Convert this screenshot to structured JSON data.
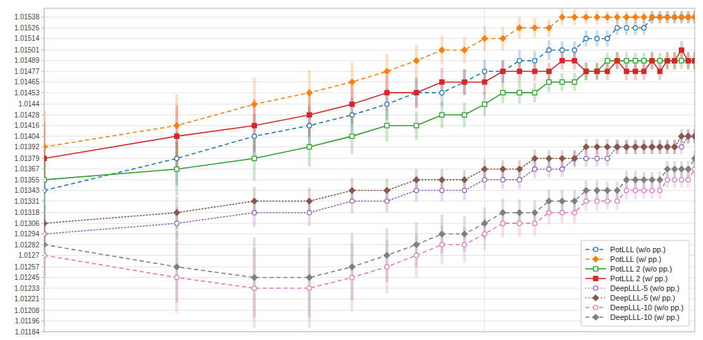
{
  "chart_data": {
    "type": "line",
    "log": "x",
    "grid": true,
    "legend": "lower right",
    "tick_labels": "y",
    "x": [
      1,
      2,
      3,
      4,
      5,
      6,
      7,
      8,
      9,
      10,
      11,
      12,
      13,
      14,
      15,
      16,
      17,
      18,
      19,
      20,
      21,
      22,
      23,
      24,
      25,
      26,
      27,
      28,
      29,
      30
    ],
    "xlim": [
      1,
      30
    ],
    "xticks": [
      1,
      10
    ],
    "ylim": [
      1.01184,
      1.01548
    ],
    "yticks": [
      1.01184,
      1.01196,
      1.01208,
      1.01221,
      1.01233,
      1.01245,
      1.01257,
      1.0127,
      1.01282,
      1.01294,
      1.01306,
      1.01318,
      1.01331,
      1.01343,
      1.01355,
      1.01367,
      1.01379,
      1.01392,
      1.01404,
      1.01416,
      1.01428,
      1.0144,
      1.01453,
      1.01465,
      1.01477,
      1.01489,
      1.01501,
      1.01514,
      1.01526,
      1.01538
    ],
    "series": [
      {
        "name": "PotLLL (w/o pp.)",
        "color": "#1f77b4",
        "marker": "circle-open",
        "line_style": "dashed",
        "values": [
          1.01343,
          1.01379,
          1.01404,
          1.01416,
          1.01428,
          1.0144,
          1.01453,
          1.01453,
          1.01465,
          1.01477,
          1.01477,
          1.01489,
          1.01489,
          1.01501,
          1.01501,
          1.01501,
          1.01514,
          1.01514,
          1.01514,
          1.01526,
          1.01526,
          1.01526,
          1.01526,
          1.01538,
          1.01538,
          1.01538,
          1.01538,
          1.01538,
          1.01538,
          1.01538
        ],
        "errors": [
          0.00035,
          0.0003,
          0.00025,
          0.00022,
          0.0002,
          0.00018,
          0.00016,
          0.00015,
          0.00014,
          0.00013,
          0.00012,
          0.00012,
          0.00011,
          0.00011,
          0.0001,
          0.0001,
          9e-05,
          9e-05,
          9e-05,
          8e-05,
          8e-05,
          8e-05,
          8e-05,
          7e-05,
          7e-05,
          7e-05,
          7e-05,
          7e-05,
          7e-05,
          7e-05
        ]
      },
      {
        "name": "PotLLL (w/ pp.)",
        "color": "#ff7f0e",
        "marker": "diamond",
        "line_style": "dashed",
        "values": [
          1.01392,
          1.01416,
          1.0144,
          1.01453,
          1.01465,
          1.01477,
          1.01489,
          1.01501,
          1.01501,
          1.01514,
          1.01514,
          1.01526,
          1.01526,
          1.01526,
          1.01538,
          1.01538,
          1.01538,
          1.01538,
          1.01538,
          1.01538,
          1.01538,
          1.01538,
          1.01538,
          1.01538,
          1.01538,
          1.01538,
          1.01538,
          1.01538,
          1.01538,
          1.01538
        ],
        "errors": [
          0.0004,
          0.00035,
          0.0003,
          0.00025,
          0.00022,
          0.0002,
          0.00018,
          0.00016,
          0.00015,
          0.00014,
          0.00013,
          0.00012,
          0.00011,
          0.0001,
          9e-05,
          9e-05,
          8e-05,
          8e-05,
          7e-05,
          7e-05,
          7e-05,
          7e-05,
          7e-05,
          7e-05,
          7e-05,
          7e-05,
          7e-05,
          7e-05,
          7e-05,
          7e-05
        ]
      },
      {
        "name": "PotLLL 2 (w/o pp.)",
        "color": "#2ca02c",
        "marker": "square-open",
        "line_style": "solid",
        "values": [
          1.01355,
          1.01367,
          1.01379,
          1.01392,
          1.01404,
          1.01416,
          1.01416,
          1.01428,
          1.01428,
          1.0144,
          1.01453,
          1.01453,
          1.01453,
          1.01465,
          1.01465,
          1.01465,
          1.01477,
          1.01477,
          1.01489,
          1.01489,
          1.01489,
          1.01489,
          1.01489,
          1.01489,
          1.01489,
          1.01489,
          1.01489,
          1.01489,
          1.01489,
          1.01489
        ],
        "errors": [
          0.00035,
          0.0003,
          0.00025,
          0.00022,
          0.0002,
          0.00018,
          0.00016,
          0.00015,
          0.00014,
          0.00013,
          0.00012,
          0.00012,
          0.00011,
          0.00011,
          0.0001,
          0.0001,
          0.0001,
          9e-05,
          9e-05,
          9e-05,
          9e-05,
          9e-05,
          9e-05,
          9e-05,
          9e-05,
          9e-05,
          9e-05,
          9e-05,
          9e-05,
          9e-05
        ]
      },
      {
        "name": "PotLLL 2 (w/ pp.)",
        "color": "#d62728",
        "marker": "square",
        "line_style": "solid",
        "values": [
          1.01379,
          1.01404,
          1.01416,
          1.01428,
          1.0144,
          1.01453,
          1.01453,
          1.01465,
          1.01465,
          1.01465,
          1.01477,
          1.01477,
          1.01477,
          1.01477,
          1.01489,
          1.01489,
          1.01477,
          1.01477,
          1.01477,
          1.01489,
          1.01477,
          1.01477,
          1.01477,
          1.01489,
          1.01477,
          1.01489,
          1.01489,
          1.01501,
          1.01489,
          1.01489
        ],
        "errors": [
          0.0004,
          0.00035,
          0.0003,
          0.00025,
          0.00022,
          0.0002,
          0.00018,
          0.00016,
          0.00015,
          0.00014,
          0.00013,
          0.00012,
          0.00011,
          0.0001,
          0.0001,
          0.0001,
          0.0001,
          0.0001,
          0.0001,
          0.0001,
          0.0001,
          0.0001,
          0.0001,
          0.0001,
          0.0001,
          0.0001,
          0.0001,
          0.0001,
          0.0001,
          0.0001
        ]
      },
      {
        "name": "DeepLLL-5 (w/o pp.)",
        "color": "#9467bd",
        "marker": "circle-open",
        "line_style": "dotted",
        "values": [
          1.01294,
          1.01306,
          1.01318,
          1.01318,
          1.01331,
          1.01331,
          1.01343,
          1.01343,
          1.01343,
          1.01355,
          1.01355,
          1.01355,
          1.01367,
          1.01367,
          1.01367,
          1.01379,
          1.01379,
          1.01379,
          1.01379,
          1.01392,
          1.01392,
          1.01392,
          1.01392,
          1.01392,
          1.01392,
          1.01392,
          1.01392,
          1.01392,
          1.01404,
          1.01404
        ],
        "errors": [
          0.0002,
          0.00018,
          0.00016,
          0.00015,
          0.00014,
          0.00013,
          0.00012,
          0.00012,
          0.00011,
          0.00011,
          0.0001,
          0.0001,
          0.0001,
          9e-05,
          9e-05,
          9e-05,
          9e-05,
          9e-05,
          9e-05,
          8e-05,
          8e-05,
          8e-05,
          8e-05,
          8e-05,
          8e-05,
          8e-05,
          8e-05,
          8e-05,
          8e-05,
          8e-05
        ]
      },
      {
        "name": "DeepLLL-5 (w/ pp.)",
        "color": "#8c564b",
        "marker": "diamond",
        "line_style": "dotted",
        "values": [
          1.01306,
          1.01318,
          1.01331,
          1.01331,
          1.01343,
          1.01343,
          1.01355,
          1.01355,
          1.01355,
          1.01367,
          1.01367,
          1.01367,
          1.01379,
          1.01379,
          1.01379,
          1.01379,
          1.01392,
          1.01392,
          1.01392,
          1.01392,
          1.01392,
          1.01392,
          1.01392,
          1.01392,
          1.01392,
          1.01392,
          1.01392,
          1.01404,
          1.01404,
          1.01404
        ],
        "errors": [
          0.0002,
          0.00018,
          0.00016,
          0.00015,
          0.00014,
          0.00013,
          0.00012,
          0.00012,
          0.00011,
          0.00011,
          0.0001,
          0.0001,
          0.0001,
          9e-05,
          9e-05,
          9e-05,
          9e-05,
          9e-05,
          9e-05,
          8e-05,
          8e-05,
          8e-05,
          8e-05,
          8e-05,
          8e-05,
          8e-05,
          8e-05,
          8e-05,
          8e-05,
          8e-05
        ]
      },
      {
        "name": "DeepLLL-10 (w/o pp.)",
        "color": "#e377c2",
        "marker": "circle-open",
        "line_style": "dashed",
        "values": [
          1.0127,
          1.01245,
          1.01233,
          1.01233,
          1.01245,
          1.01257,
          1.0127,
          1.01282,
          1.01282,
          1.01294,
          1.01306,
          1.01306,
          1.01306,
          1.01318,
          1.01318,
          1.01318,
          1.01331,
          1.01331,
          1.01331,
          1.01331,
          1.01343,
          1.01343,
          1.01343,
          1.01343,
          1.01343,
          1.01355,
          1.01355,
          1.01355,
          1.01355,
          1.01367
        ],
        "errors": [
          0.00035,
          0.0004,
          0.00045,
          0.00045,
          0.00038,
          0.0003,
          0.00025,
          0.00022,
          0.0002,
          0.00018,
          0.00016,
          0.00015,
          0.00014,
          0.00013,
          0.00012,
          0.00012,
          0.00011,
          0.00011,
          0.0001,
          0.0001,
          0.0001,
          0.0001,
          9e-05,
          9e-05,
          9e-05,
          9e-05,
          9e-05,
          9e-05,
          9e-05,
          9e-05
        ]
      },
      {
        "name": "DeepLLL-10 (w/ pp.)",
        "color": "#7f7f7f",
        "marker": "diamond",
        "line_style": "dashed",
        "values": [
          1.01282,
          1.01257,
          1.01245,
          1.01245,
          1.01257,
          1.0127,
          1.01282,
          1.01294,
          1.01294,
          1.01306,
          1.01318,
          1.01318,
          1.01318,
          1.01331,
          1.01331,
          1.01331,
          1.01343,
          1.01343,
          1.01343,
          1.01343,
          1.01355,
          1.01355,
          1.01355,
          1.01355,
          1.01355,
          1.01367,
          1.01367,
          1.01367,
          1.01367,
          1.01379
        ],
        "errors": [
          0.00035,
          0.0004,
          0.00045,
          0.00045,
          0.00038,
          0.0003,
          0.00025,
          0.00022,
          0.0002,
          0.00018,
          0.00016,
          0.00015,
          0.00014,
          0.00013,
          0.00012,
          0.00012,
          0.00011,
          0.00011,
          0.0001,
          0.0001,
          0.0001,
          0.0001,
          9e-05,
          9e-05,
          9e-05,
          9e-05,
          9e-05,
          9e-05,
          9e-05,
          9e-05
        ]
      }
    ]
  }
}
